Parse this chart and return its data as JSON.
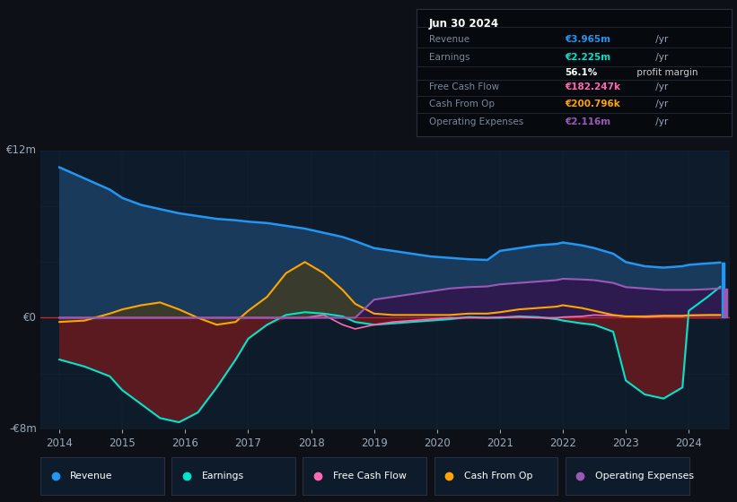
{
  "bg_color": "#0d1117",
  "plot_bg_color": "#0d1b2a",
  "years": [
    2014.0,
    2014.4,
    2014.8,
    2015.0,
    2015.3,
    2015.6,
    2015.9,
    2016.2,
    2016.5,
    2016.8,
    2017.0,
    2017.3,
    2017.6,
    2017.9,
    2018.2,
    2018.5,
    2018.7,
    2019.0,
    2019.3,
    2019.6,
    2019.9,
    2020.2,
    2020.5,
    2020.8,
    2021.0,
    2021.3,
    2021.6,
    2021.9,
    2022.0,
    2022.3,
    2022.5,
    2022.8,
    2023.0,
    2023.3,
    2023.6,
    2023.9,
    2024.0,
    2024.3,
    2024.5
  ],
  "revenue": [
    10.8,
    10.0,
    9.2,
    8.6,
    8.1,
    7.8,
    7.5,
    7.3,
    7.1,
    7.0,
    6.9,
    6.8,
    6.6,
    6.4,
    6.1,
    5.8,
    5.5,
    5.0,
    4.8,
    4.6,
    4.4,
    4.3,
    4.2,
    4.15,
    4.8,
    5.0,
    5.2,
    5.3,
    5.4,
    5.2,
    5.0,
    4.6,
    4.0,
    3.7,
    3.6,
    3.7,
    3.8,
    3.9,
    3.965
  ],
  "earnings": [
    -3.0,
    -3.5,
    -4.2,
    -5.2,
    -6.2,
    -7.2,
    -7.5,
    -6.8,
    -5.0,
    -3.0,
    -1.5,
    -0.5,
    0.2,
    0.4,
    0.3,
    0.1,
    -0.3,
    -0.5,
    -0.4,
    -0.3,
    -0.2,
    -0.1,
    0.05,
    0.0,
    0.0,
    0.1,
    0.05,
    -0.1,
    -0.2,
    -0.4,
    -0.5,
    -1.0,
    -4.5,
    -5.5,
    -5.8,
    -5.0,
    0.5,
    1.5,
    2.225
  ],
  "free_cash_flow": [
    0.0,
    0.0,
    0.0,
    0.0,
    0.0,
    0.0,
    0.0,
    0.0,
    0.0,
    0.0,
    0.0,
    0.0,
    0.0,
    0.0,
    0.2,
    -0.5,
    -0.8,
    -0.5,
    -0.3,
    -0.2,
    -0.1,
    0.0,
    0.0,
    0.0,
    0.05,
    0.05,
    0.0,
    0.0,
    0.05,
    0.1,
    0.2,
    0.15,
    0.1,
    0.05,
    0.1,
    0.1,
    0.15,
    0.18,
    0.182
  ],
  "cash_from_op": [
    -0.3,
    -0.2,
    0.3,
    0.6,
    0.9,
    1.1,
    0.6,
    0.0,
    -0.5,
    -0.3,
    0.5,
    1.5,
    3.2,
    4.0,
    3.2,
    2.0,
    1.0,
    0.3,
    0.2,
    0.2,
    0.2,
    0.2,
    0.3,
    0.3,
    0.4,
    0.6,
    0.7,
    0.8,
    0.9,
    0.7,
    0.5,
    0.2,
    0.1,
    0.1,
    0.15,
    0.15,
    0.18,
    0.2,
    0.201
  ],
  "op_expenses": [
    0.0,
    0.0,
    0.0,
    0.0,
    0.0,
    0.0,
    0.0,
    0.0,
    0.0,
    0.0,
    0.0,
    0.0,
    0.0,
    0.0,
    0.0,
    0.0,
    0.0,
    1.3,
    1.5,
    1.7,
    1.9,
    2.1,
    2.2,
    2.25,
    2.4,
    2.5,
    2.6,
    2.7,
    2.8,
    2.75,
    2.7,
    2.5,
    2.2,
    2.1,
    2.0,
    2.0,
    2.0,
    2.05,
    2.116
  ],
  "ylim": [
    -8,
    12
  ],
  "colors": {
    "revenue": "#2196f3",
    "revenue_fill": "#1a3a5c",
    "earnings": "#00e5cc",
    "earnings_fill_neg": "#5a1a20",
    "earnings_fill_pos": "#1a4a40",
    "cash_from_op": "#ffa500",
    "cash_from_op_fill": "#3d3d28",
    "op_expenses": "#9b59b6",
    "op_expenses_fill": "#2d1b50",
    "free_cash_flow": "#ff69b4",
    "zero_line": "#cc2222",
    "grid": "#1a2535"
  },
  "legend": [
    {
      "label": "Revenue",
      "color": "#2196f3"
    },
    {
      "label": "Earnings",
      "color": "#00e5cc"
    },
    {
      "label": "Free Cash Flow",
      "color": "#ff69b4"
    },
    {
      "label": "Cash From Op",
      "color": "#ffa500"
    },
    {
      "label": "Operating Expenses",
      "color": "#9b59b6"
    }
  ],
  "info_box": {
    "date": "Jun 30 2024",
    "rows": [
      {
        "label": "Revenue",
        "value": "€3.965m",
        "value_color": "#2196f3"
      },
      {
        "label": "Earnings",
        "value": "€2.225m",
        "value_color": "#00e5cc"
      },
      {
        "label": "",
        "value": "56.1%",
        "value_color": "#ffffff",
        "suffix": " profit margin"
      },
      {
        "label": "Free Cash Flow",
        "value": "€182.247k",
        "value_color": "#ff69b4"
      },
      {
        "label": "Cash From Op",
        "value": "€200.796k",
        "value_color": "#ffa500"
      },
      {
        "label": "Operating Expenses",
        "value": "€2.116m",
        "value_color": "#9b59b6"
      }
    ]
  }
}
